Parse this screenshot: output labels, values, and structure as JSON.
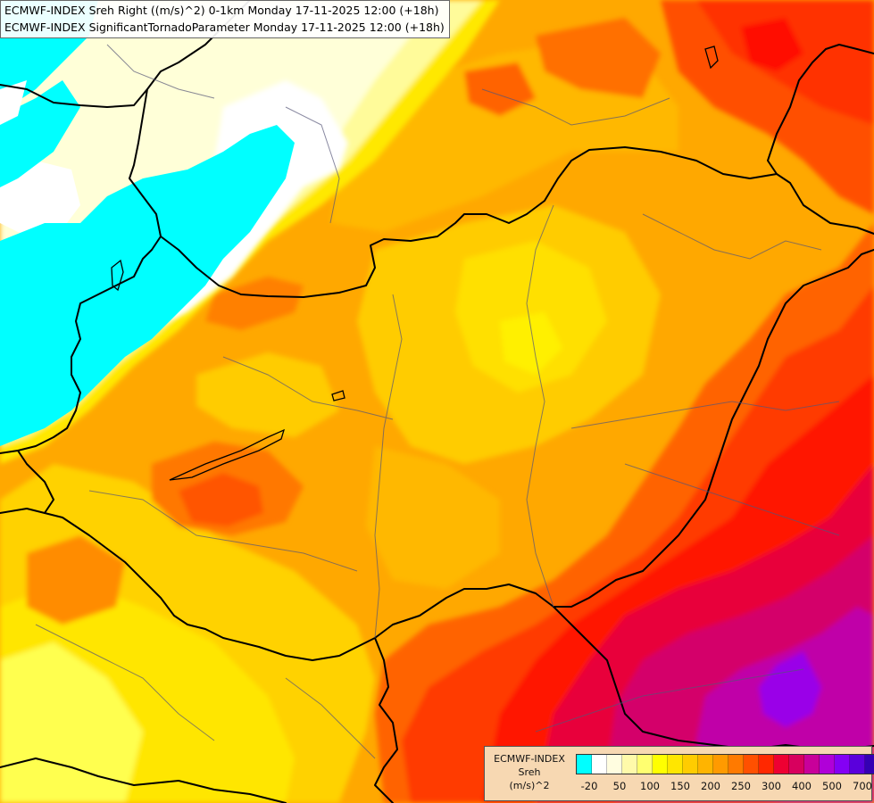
{
  "title": {
    "line1": "ECMWF-INDEX Sreh Right ((m/s)^2) 0-1km Monday 17-11-2025 12:00 (+18h)",
    "line2": "ECMWF-INDEX SignificantTornadoParameter Monday 17-11-2025 12:00 (+18h)"
  },
  "legend": {
    "line1": "ECMWF-INDEX",
    "line2": "Sreh",
    "line3": "(m/s)^2",
    "colors": [
      "#00ffff",
      "#ffffff",
      "#fffde0",
      "#fffaaa",
      "#ffff70",
      "#ffff00",
      "#ffe600",
      "#ffcc00",
      "#ffb400",
      "#ff9a00",
      "#ff7a00",
      "#ff5000",
      "#ff2800",
      "#ee0032",
      "#d8005e",
      "#c8009a",
      "#b000d8",
      "#8400f4",
      "#5a00dc",
      "#3400b4",
      "#0c008c"
    ],
    "tick_labels": [
      "-20",
      "50",
      "100",
      "150",
      "200",
      "250",
      "300",
      "400",
      "500",
      "700"
    ]
  },
  "map": {
    "background_color": "#ffa000"
  }
}
